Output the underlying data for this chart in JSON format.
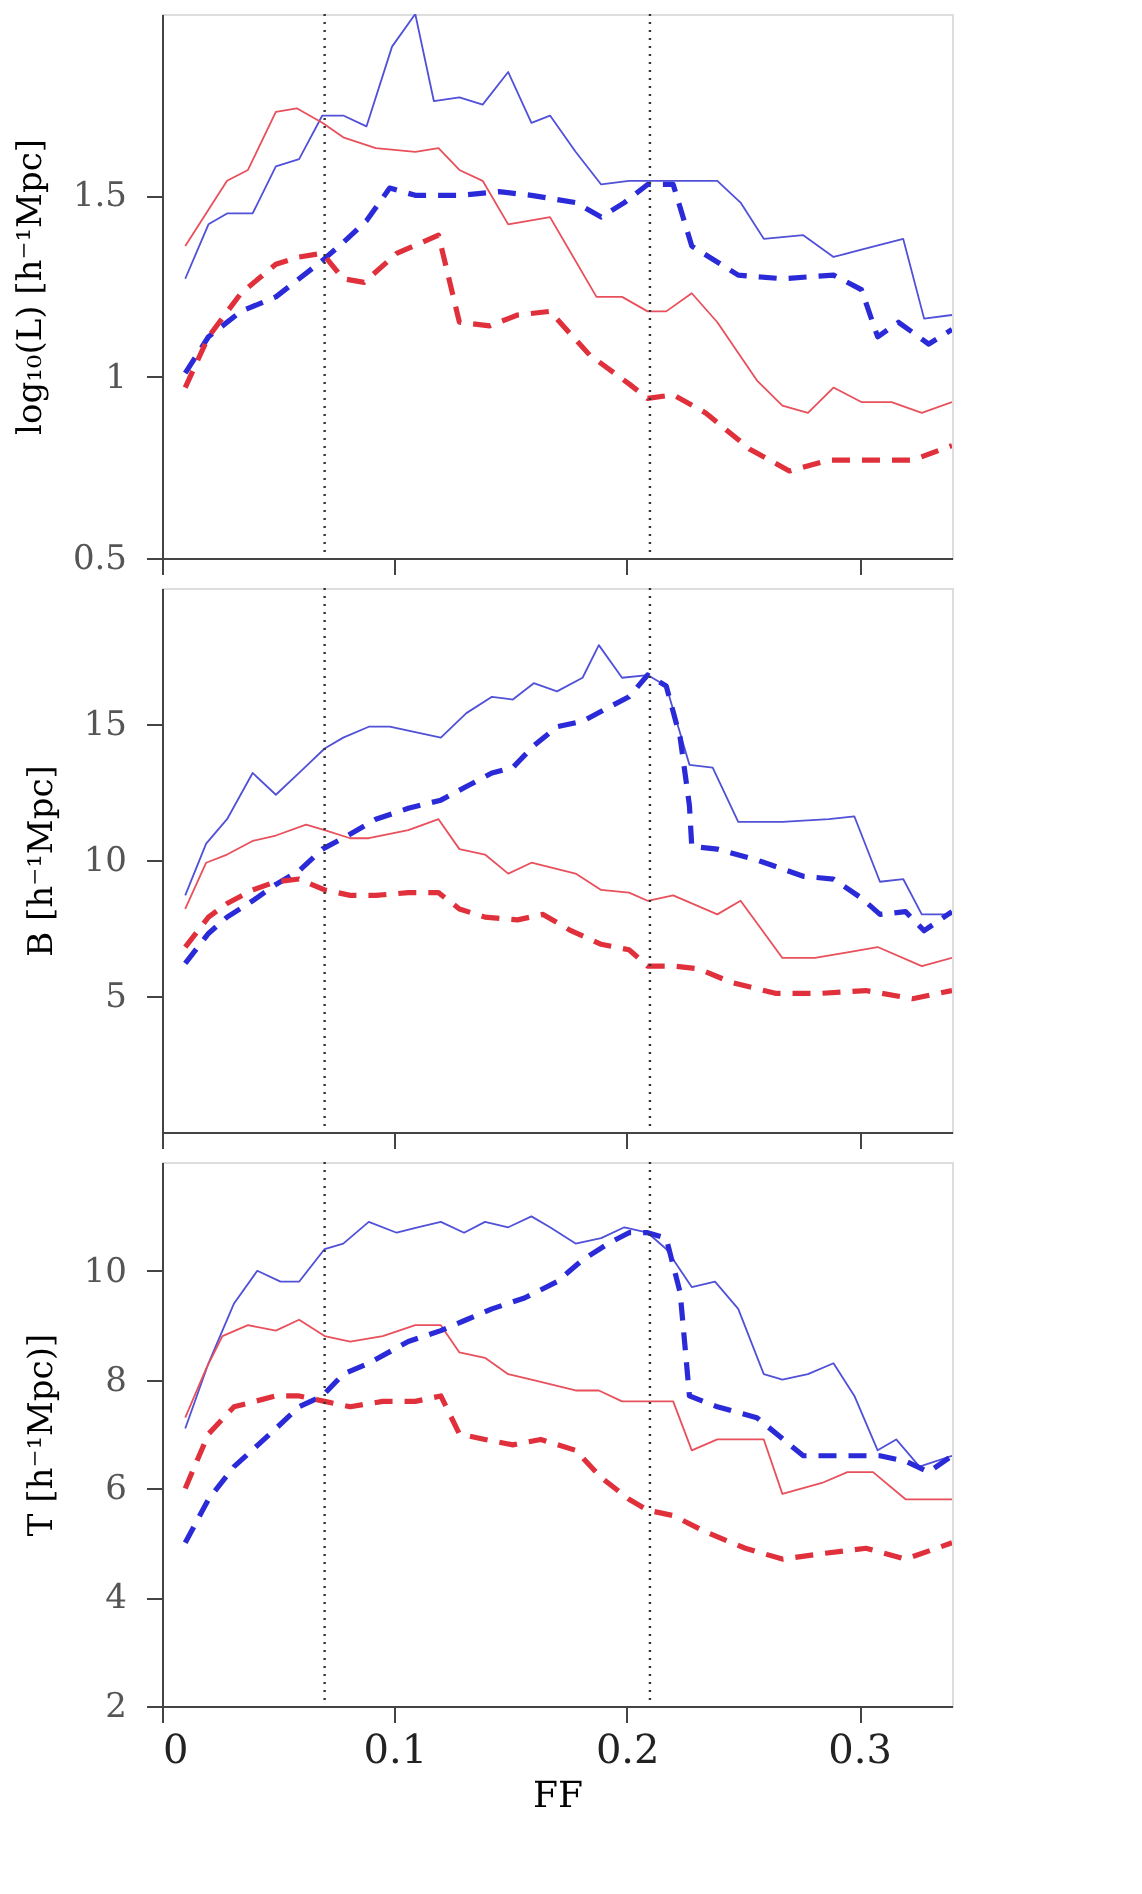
{
  "chart_data": [
    {
      "type": "line",
      "ylabel": "log₁₀(L) [h⁻¹Mpc]",
      "xlim": [
        0,
        0.34
      ],
      "xticks": [
        0,
        0.1,
        0.2,
        0.3
      ],
      "ylim": [
        0.5,
        2.0
      ],
      "yticks": [
        0.5,
        1,
        1.5
      ],
      "tick_labels": "y",
      "grid": false,
      "ref_lines": [
        {
          "axis": "x",
          "value": 0.07,
          "line_style": "dotted",
          "color": "#333333"
        },
        {
          "axis": "x",
          "value": 0.21,
          "line_style": "dotted",
          "color": "#333333"
        }
      ],
      "series": [
        {
          "color": "#5050d8",
          "line_style": "solid",
          "x": [
            0.01,
            0.02,
            0.028,
            0.039,
            0.049,
            0.059,
            0.069,
            0.078,
            0.088,
            0.099,
            0.109,
            0.117,
            0.128,
            0.138,
            0.149,
            0.159,
            0.167,
            0.178,
            0.189,
            0.201,
            0.239,
            0.249,
            0.259,
            0.276,
            0.289,
            0.301,
            0.319,
            0.328,
            0.34
          ],
          "values": [
            1.27,
            1.42,
            1.45,
            1.45,
            1.58,
            1.6,
            1.72,
            1.72,
            1.69,
            1.91,
            2.0,
            1.76,
            1.77,
            1.75,
            1.84,
            1.7,
            1.72,
            1.62,
            1.53,
            1.54,
            1.54,
            1.48,
            1.38,
            1.39,
            1.33,
            1.35,
            1.38,
            1.16,
            1.17
          ]
        },
        {
          "color": "#e8505c",
          "line_style": "solid",
          "x": [
            0.01,
            0.02,
            0.028,
            0.037,
            0.049,
            0.058,
            0.069,
            0.078,
            0.092,
            0.109,
            0.119,
            0.128,
            0.138,
            0.149,
            0.167,
            0.187,
            0.198,
            0.209,
            0.217,
            0.228,
            0.239,
            0.256,
            0.267,
            0.278,
            0.289,
            0.301,
            0.314,
            0.327,
            0.34
          ],
          "values": [
            1.36,
            1.46,
            1.54,
            1.57,
            1.73,
            1.74,
            1.7,
            1.66,
            1.63,
            1.62,
            1.63,
            1.57,
            1.54,
            1.42,
            1.44,
            1.22,
            1.22,
            1.18,
            1.18,
            1.23,
            1.15,
            0.99,
            0.92,
            0.9,
            0.97,
            0.93,
            0.93,
            0.9,
            0.93
          ]
        },
        {
          "color": "#2a2ad8",
          "line_style": "dashed",
          "x": [
            0.01,
            0.02,
            0.034,
            0.049,
            0.059,
            0.069,
            0.078,
            0.088,
            0.098,
            0.109,
            0.128,
            0.145,
            0.159,
            0.178,
            0.189,
            0.199,
            0.209,
            0.22,
            0.228,
            0.248,
            0.267,
            0.289,
            0.301,
            0.308,
            0.317,
            0.33,
            0.34
          ],
          "values": [
            1.01,
            1.11,
            1.18,
            1.22,
            1.27,
            1.32,
            1.37,
            1.43,
            1.52,
            1.5,
            1.5,
            1.51,
            1.5,
            1.48,
            1.44,
            1.48,
            1.53,
            1.53,
            1.36,
            1.28,
            1.27,
            1.28,
            1.24,
            1.11,
            1.15,
            1.09,
            1.13
          ]
        },
        {
          "color": "#e0303c",
          "line_style": "dashed",
          "x": [
            0.01,
            0.02,
            0.034,
            0.049,
            0.059,
            0.069,
            0.078,
            0.087,
            0.101,
            0.119,
            0.128,
            0.141,
            0.153,
            0.167,
            0.184,
            0.201,
            0.209,
            0.22,
            0.234,
            0.253,
            0.27,
            0.287,
            0.306,
            0.323,
            0.34
          ],
          "values": [
            0.97,
            1.11,
            1.23,
            1.31,
            1.33,
            1.34,
            1.27,
            1.26,
            1.34,
            1.39,
            1.15,
            1.14,
            1.17,
            1.18,
            1.06,
            0.98,
            0.94,
            0.95,
            0.9,
            0.8,
            0.74,
            0.77,
            0.77,
            0.77,
            0.81
          ]
        }
      ]
    },
    {
      "type": "line",
      "ylabel": "B [h⁻¹Mpc]",
      "xlim": [
        0,
        0.34
      ],
      "xticks": [
        0,
        0.1,
        0.2,
        0.3
      ],
      "ylim": [
        0,
        20
      ],
      "yticks": [
        5,
        10,
        15
      ],
      "tick_labels": "y",
      "grid": false,
      "ref_lines": [
        {
          "axis": "x",
          "value": 0.07,
          "line_style": "dotted",
          "color": "#333333"
        },
        {
          "axis": "x",
          "value": 0.21,
          "line_style": "dotted",
          "color": "#333333"
        }
      ],
      "series": [
        {
          "color": "#5050d8",
          "line_style": "solid",
          "x": [
            0.01,
            0.019,
            0.028,
            0.039,
            0.049,
            0.059,
            0.07,
            0.078,
            0.089,
            0.098,
            0.109,
            0.12,
            0.131,
            0.142,
            0.151,
            0.16,
            0.17,
            0.181,
            0.188,
            0.198,
            0.209,
            0.217,
            0.227,
            0.237,
            0.248,
            0.267,
            0.287,
            0.298,
            0.309,
            0.319,
            0.327,
            0.34
          ],
          "values": [
            8.7,
            10.6,
            11.5,
            13.2,
            12.4,
            13.2,
            14.1,
            14.5,
            14.9,
            14.9,
            14.7,
            14.5,
            15.4,
            16.0,
            15.9,
            16.5,
            16.2,
            16.7,
            17.9,
            16.7,
            16.8,
            16.4,
            13.5,
            13.4,
            11.4,
            11.4,
            11.5,
            11.6,
            9.2,
            9.3,
            8.0,
            8.0
          ]
        },
        {
          "color": "#e8505c",
          "line_style": "solid",
          "x": [
            0.01,
            0.019,
            0.028,
            0.039,
            0.049,
            0.062,
            0.07,
            0.081,
            0.089,
            0.106,
            0.119,
            0.128,
            0.139,
            0.149,
            0.159,
            0.178,
            0.189,
            0.201,
            0.209,
            0.22,
            0.239,
            0.249,
            0.267,
            0.281,
            0.295,
            0.308,
            0.327,
            0.34
          ],
          "values": [
            8.2,
            9.9,
            10.2,
            10.7,
            10.9,
            11.3,
            11.1,
            10.8,
            10.8,
            11.1,
            11.5,
            10.4,
            10.2,
            9.5,
            9.9,
            9.5,
            8.9,
            8.8,
            8.5,
            8.7,
            8.0,
            8.5,
            6.4,
            6.4,
            6.6,
            6.8,
            6.1,
            6.4
          ]
        },
        {
          "color": "#2a2ad8",
          "line_style": "dashed",
          "x": [
            0.01,
            0.02,
            0.028,
            0.039,
            0.049,
            0.059,
            0.069,
            0.08,
            0.092,
            0.106,
            0.12,
            0.131,
            0.142,
            0.151,
            0.16,
            0.17,
            0.181,
            0.192,
            0.201,
            0.209,
            0.217,
            0.223,
            0.227,
            0.228,
            0.239,
            0.256,
            0.276,
            0.289,
            0.301,
            0.309,
            0.32,
            0.328,
            0.34
          ],
          "values": [
            6.2,
            7.3,
            7.9,
            8.5,
            9.1,
            9.6,
            10.4,
            10.9,
            11.5,
            11.9,
            12.2,
            12.7,
            13.2,
            13.4,
            14.2,
            14.9,
            15.1,
            15.6,
            16.0,
            16.8,
            16.4,
            14.5,
            12.0,
            10.5,
            10.4,
            10.0,
            9.4,
            9.3,
            8.6,
            8.0,
            8.1,
            7.4,
            8.1
          ]
        },
        {
          "color": "#e0303c",
          "line_style": "dashed",
          "x": [
            0.01,
            0.02,
            0.028,
            0.039,
            0.049,
            0.059,
            0.07,
            0.081,
            0.092,
            0.106,
            0.119,
            0.128,
            0.139,
            0.153,
            0.164,
            0.176,
            0.189,
            0.201,
            0.209,
            0.22,
            0.231,
            0.245,
            0.264,
            0.284,
            0.303,
            0.323,
            0.34
          ],
          "values": [
            6.8,
            7.9,
            8.4,
            8.9,
            9.2,
            9.3,
            8.9,
            8.7,
            8.7,
            8.8,
            8.8,
            8.2,
            7.9,
            7.8,
            8.0,
            7.4,
            6.9,
            6.7,
            6.1,
            6.1,
            6.0,
            5.5,
            5.1,
            5.1,
            5.2,
            4.9,
            5.2
          ]
        }
      ]
    },
    {
      "type": "line",
      "ylabel": "T [h⁻¹Mpc)]",
      "xlabel": "FF",
      "xlim": [
        0,
        0.34
      ],
      "xticks": [
        0,
        0.1,
        0.2,
        0.3
      ],
      "ylim": [
        2,
        12
      ],
      "yticks": [
        2,
        4,
        6,
        8,
        10
      ],
      "grid": false,
      "ref_lines": [
        {
          "axis": "x",
          "value": 0.07,
          "line_style": "dotted",
          "color": "#333333"
        },
        {
          "axis": "x",
          "value": 0.21,
          "line_style": "dotted",
          "color": "#333333"
        }
      ],
      "series": [
        {
          "color": "#5050d8",
          "line_style": "solid",
          "x": [
            0.01,
            0.02,
            0.031,
            0.041,
            0.051,
            0.059,
            0.07,
            0.078,
            0.089,
            0.101,
            0.11,
            0.12,
            0.13,
            0.139,
            0.149,
            0.159,
            0.167,
            0.178,
            0.189,
            0.199,
            0.209,
            0.217,
            0.228,
            0.238,
            0.248,
            0.259,
            0.267,
            0.278,
            0.289,
            0.298,
            0.308,
            0.316,
            0.326,
            0.34
          ],
          "values": [
            7.1,
            8.3,
            9.4,
            10.0,
            9.8,
            9.8,
            10.4,
            10.5,
            10.9,
            10.7,
            10.8,
            10.9,
            10.7,
            10.9,
            10.8,
            11.0,
            10.8,
            10.5,
            10.6,
            10.8,
            10.7,
            10.4,
            9.7,
            9.8,
            9.3,
            8.1,
            8.0,
            8.1,
            8.3,
            7.7,
            6.7,
            6.9,
            6.4,
            6.6
          ]
        },
        {
          "color": "#e8505c",
          "line_style": "solid",
          "x": [
            0.01,
            0.019,
            0.026,
            0.037,
            0.049,
            0.059,
            0.07,
            0.081,
            0.095,
            0.109,
            0.12,
            0.128,
            0.139,
            0.149,
            0.159,
            0.178,
            0.188,
            0.198,
            0.209,
            0.22,
            0.228,
            0.239,
            0.259,
            0.267,
            0.284,
            0.295,
            0.306,
            0.32,
            0.34
          ],
          "values": [
            7.3,
            8.2,
            8.8,
            9.0,
            8.9,
            9.1,
            8.8,
            8.7,
            8.8,
            9.0,
            9.0,
            8.5,
            8.4,
            8.1,
            8.0,
            7.8,
            7.8,
            7.6,
            7.6,
            7.6,
            6.7,
            6.9,
            6.9,
            5.9,
            6.1,
            6.3,
            6.3,
            5.8,
            5.8
          ]
        },
        {
          "color": "#2a2ad8",
          "line_style": "dashed",
          "x": [
            0.01,
            0.02,
            0.031,
            0.049,
            0.059,
            0.069,
            0.078,
            0.089,
            0.106,
            0.12,
            0.131,
            0.142,
            0.156,
            0.17,
            0.181,
            0.192,
            0.201,
            0.209,
            0.217,
            0.223,
            0.227,
            0.239,
            0.256,
            0.276,
            0.289,
            0.309,
            0.32,
            0.33,
            0.34
          ],
          "values": [
            5.0,
            5.8,
            6.4,
            7.1,
            7.5,
            7.7,
            8.1,
            8.3,
            8.7,
            8.9,
            9.1,
            9.3,
            9.5,
            9.8,
            10.2,
            10.5,
            10.7,
            10.7,
            10.6,
            9.6,
            7.7,
            7.5,
            7.3,
            6.6,
            6.6,
            6.6,
            6.5,
            6.3,
            6.6
          ]
        },
        {
          "color": "#e0303c",
          "line_style": "dashed",
          "x": [
            0.01,
            0.02,
            0.031,
            0.049,
            0.059,
            0.07,
            0.081,
            0.095,
            0.109,
            0.12,
            0.128,
            0.139,
            0.151,
            0.163,
            0.178,
            0.189,
            0.201,
            0.209,
            0.22,
            0.234,
            0.251,
            0.267,
            0.284,
            0.303,
            0.32,
            0.34
          ],
          "values": [
            6.0,
            7.0,
            7.5,
            7.7,
            7.7,
            7.6,
            7.5,
            7.6,
            7.6,
            7.7,
            7.0,
            6.9,
            6.8,
            6.9,
            6.7,
            6.2,
            5.8,
            5.6,
            5.5,
            5.2,
            4.9,
            4.7,
            4.8,
            4.9,
            4.7,
            5.0
          ]
        }
      ]
    }
  ]
}
